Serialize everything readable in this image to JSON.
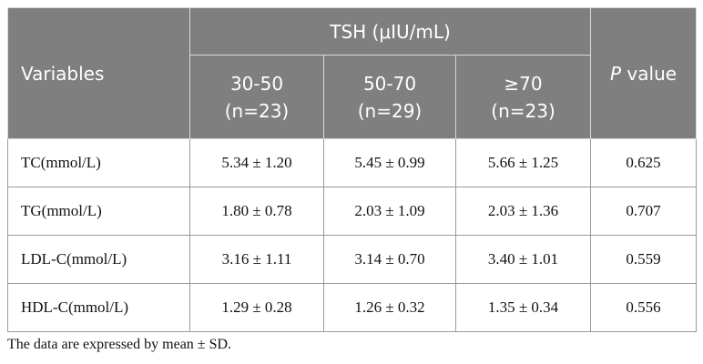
{
  "table": {
    "header": {
      "variables": "Variables",
      "group": "TSH (μIU/mL)",
      "subgroups": [
        {
          "range": "30-50",
          "n": "(n=23)"
        },
        {
          "range": "50-70",
          "n": "(n=29)"
        },
        {
          "range": "≥70",
          "n": "(n=23)"
        }
      ],
      "p_value": {
        "symbol": "P",
        "label": "value"
      }
    },
    "rows": [
      [
        "TC(mmol/L)",
        "5.34 ± 1.20",
        "5.45 ± 0.99",
        "5.66 ± 1.25",
        "0.625"
      ],
      [
        "TG(mmol/L)",
        "1.80 ± 0.78",
        "2.03 ± 1.09",
        "2.03 ± 1.36",
        "0.707"
      ],
      [
        "LDL-C(mmol/L)",
        "3.16 ± 1.11",
        "3.14 ± 0.70",
        "3.40 ± 1.01",
        "0.559"
      ],
      [
        "HDL-C(mmol/L)",
        "1.29 ± 0.28",
        "1.26 ± 0.32",
        "1.35 ± 0.34",
        "0.556"
      ]
    ],
    "footnote": "The data are expressed by mean ± SD."
  }
}
